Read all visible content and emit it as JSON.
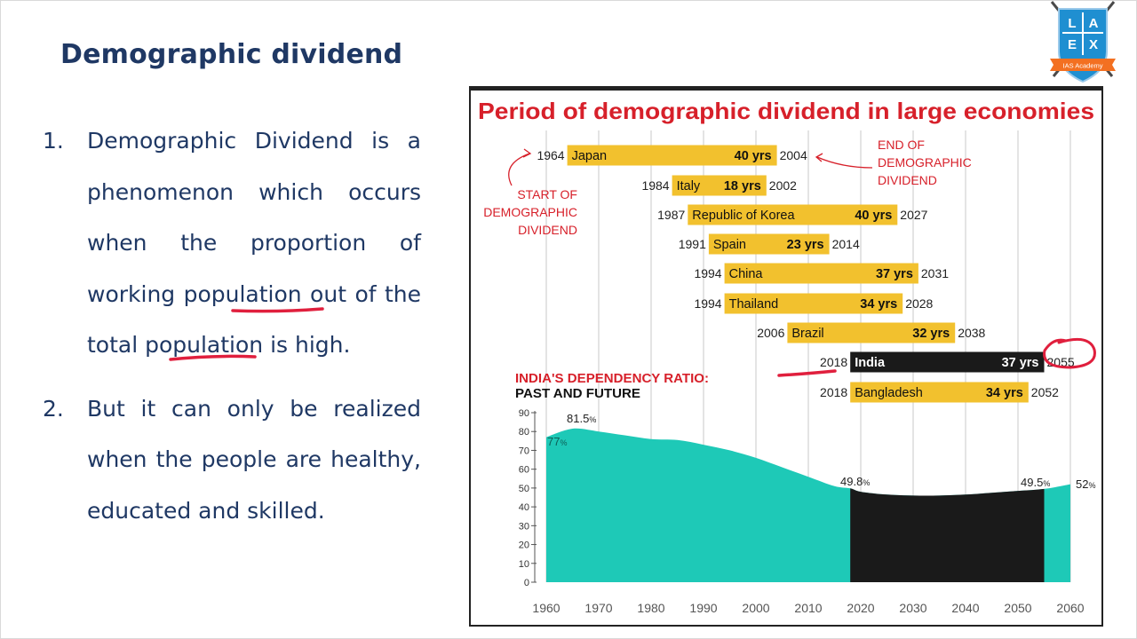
{
  "slide": {
    "title": "Demographic dividend",
    "points": [
      {
        "number": "1.",
        "text": "Demographic Dividend is a phenomenon which occurs when the proportion of working population out of the total population is high."
      },
      {
        "number": "2.",
        "text": "But it can only be realized when the people are healthy, educated and skilled."
      }
    ]
  },
  "logo": {
    "letters": [
      "L",
      "A",
      "E",
      "X"
    ],
    "ribbon": "IAS Academy",
    "colors": {
      "shield": "#1f8fd1",
      "ribbon": "#f37021",
      "swords": "#4a4a4a"
    }
  },
  "chart_data": [
    {
      "type": "bar",
      "title": "Period of demographic dividend in large economies",
      "x_range": [
        1960,
        2060
      ],
      "x_ticks": [
        1960,
        1970,
        1980,
        1990,
        2000,
        2010,
        2020,
        2030,
        2040,
        2050,
        2060
      ],
      "bars": [
        {
          "country": "Japan",
          "start": 1964,
          "end": 2004,
          "duration": "40 yrs",
          "highlight": false
        },
        {
          "country": "Italy",
          "start": 1984,
          "end": 2002,
          "duration": "18 yrs",
          "highlight": false
        },
        {
          "country": "Republic of Korea",
          "start": 1987,
          "end": 2027,
          "duration": "40 yrs",
          "highlight": false
        },
        {
          "country": "Spain",
          "start": 1991,
          "end": 2014,
          "duration": "23 yrs",
          "highlight": false
        },
        {
          "country": "China",
          "start": 1994,
          "end": 2031,
          "duration": "37 yrs",
          "highlight": false
        },
        {
          "country": "Thailand",
          "start": 1994,
          "end": 2028,
          "duration": "34 yrs",
          "highlight": false
        },
        {
          "country": "Brazil",
          "start": 2006,
          "end": 2038,
          "duration": "32 yrs",
          "highlight": false
        },
        {
          "country": "India",
          "start": 2018,
          "end": 2055,
          "duration": "37 yrs",
          "highlight": true
        },
        {
          "country": "Bangladesh",
          "start": 2018,
          "end": 2052,
          "duration": "34 yrs",
          "highlight": false
        }
      ],
      "annotations": {
        "start": [
          "START OF",
          "DEMOGRAPHIC",
          "DIVIDEND"
        ],
        "end": [
          "END OF",
          "DEMOGRAPHIC",
          "DIVIDEND"
        ]
      },
      "colors": {
        "bar": "#f2c12e",
        "highlight": "#1a1a1a",
        "title": "#d7202a",
        "annotation": "#d7202a"
      }
    },
    {
      "type": "area",
      "title": "INDIA'S DEPENDENCY RATIO:",
      "subtitle": "PAST AND FUTURE",
      "x": [
        1960,
        1965,
        1970,
        1975,
        1980,
        1985,
        1990,
        1995,
        2000,
        2005,
        2010,
        2015,
        2018,
        2020,
        2025,
        2030,
        2035,
        2040,
        2045,
        2050,
        2055,
        2060
      ],
      "y": [
        77,
        81.5,
        80,
        78,
        76,
        75.5,
        73,
        70,
        66,
        61,
        56,
        51,
        49.8,
        48,
        46.5,
        46,
        46,
        46.5,
        47.5,
        48.5,
        49.5,
        52
      ],
      "x_ticks": [
        1960,
        1970,
        1980,
        1990,
        2000,
        2010,
        2020,
        2030,
        2040,
        2050,
        2060
      ],
      "y_ticks": [
        0,
        10,
        20,
        30,
        40,
        50,
        60,
        70,
        80,
        90
      ],
      "ylim": [
        0,
        90
      ],
      "dividend_period": [
        2018,
        2055
      ],
      "labels": [
        {
          "x": 1960,
          "y": 77,
          "text": "77",
          "unit": "%"
        },
        {
          "x": 1965,
          "y": 81.5,
          "text": "81.5",
          "unit": "%"
        },
        {
          "x": 2018,
          "y": 49.8,
          "text": "49.8",
          "unit": "%"
        },
        {
          "x": 2055,
          "y": 49.5,
          "text": "49.5",
          "unit": "%"
        },
        {
          "x": 2060,
          "y": 52,
          "text": "52",
          "unit": "%"
        }
      ],
      "colors": {
        "area": "#1ec9b7",
        "dividend_area": "#1a1a1a",
        "title": "#d7202a"
      }
    }
  ]
}
